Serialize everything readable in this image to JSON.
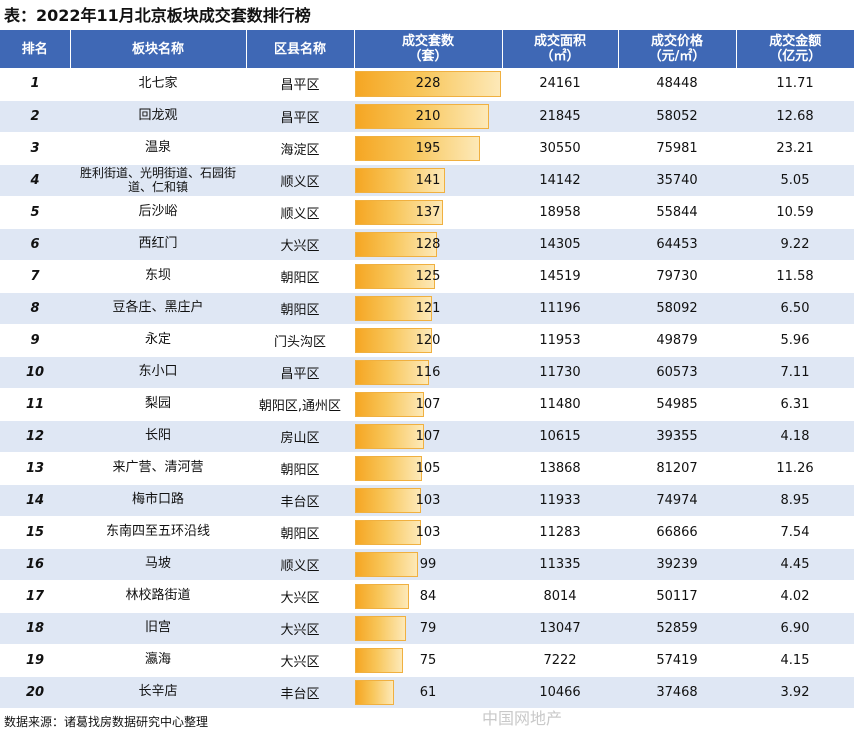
{
  "title": "表：2022年11月北京板块成交套数排行榜",
  "headers": {
    "rank": "排名",
    "block": "板块名称",
    "district": "区县名称",
    "count": "成交套数",
    "count_unit": "（套）",
    "area": "成交面积",
    "area_unit": "（㎡）",
    "price": "成交价格",
    "price_unit": "（元/㎡）",
    "amount": "成交金额",
    "amount_unit": "（亿元）"
  },
  "bar_max": 228,
  "colors": {
    "header_bg": "#3f68b5",
    "stripe_bg": "#dfe7f4",
    "bar": "#f5a623"
  },
  "rows": [
    {
      "rank": "1",
      "block": "北七家",
      "district": "昌平区",
      "count": 228,
      "area": "24161",
      "price": "48448",
      "amount": "11.71"
    },
    {
      "rank": "2",
      "block": "回龙观",
      "district": "昌平区",
      "count": 210,
      "area": "21845",
      "price": "58052",
      "amount": "12.68"
    },
    {
      "rank": "3",
      "block": "温泉",
      "district": "海淀区",
      "count": 195,
      "area": "30550",
      "price": "75981",
      "amount": "23.21"
    },
    {
      "rank": "4",
      "block": "胜利街道、光明街道、石园街道、仁和镇",
      "district": "顺义区",
      "count": 141,
      "area": "14142",
      "price": "35740",
      "amount": "5.05"
    },
    {
      "rank": "5",
      "block": "后沙峪",
      "district": "顺义区",
      "count": 137,
      "area": "18958",
      "price": "55844",
      "amount": "10.59"
    },
    {
      "rank": "6",
      "block": "西红门",
      "district": "大兴区",
      "count": 128,
      "area": "14305",
      "price": "64453",
      "amount": "9.22"
    },
    {
      "rank": "7",
      "block": "东坝",
      "district": "朝阳区",
      "count": 125,
      "area": "14519",
      "price": "79730",
      "amount": "11.58"
    },
    {
      "rank": "8",
      "block": "豆各庄、黑庄户",
      "district": "朝阳区",
      "count": 121,
      "area": "11196",
      "price": "58092",
      "amount": "6.50"
    },
    {
      "rank": "9",
      "block": "永定",
      "district": "门头沟区",
      "count": 120,
      "area": "11953",
      "price": "49879",
      "amount": "5.96"
    },
    {
      "rank": "10",
      "block": "东小口",
      "district": "昌平区",
      "count": 116,
      "area": "11730",
      "price": "60573",
      "amount": "7.11"
    },
    {
      "rank": "11",
      "block": "梨园",
      "district": "朝阳区,通州区",
      "count": 107,
      "area": "11480",
      "price": "54985",
      "amount": "6.31"
    },
    {
      "rank": "12",
      "block": "长阳",
      "district": "房山区",
      "count": 107,
      "area": "10615",
      "price": "39355",
      "amount": "4.18"
    },
    {
      "rank": "13",
      "block": "来广营、清河营",
      "district": "朝阳区",
      "count": 105,
      "area": "13868",
      "price": "81207",
      "amount": "11.26"
    },
    {
      "rank": "14",
      "block": "梅市口路",
      "district": "丰台区",
      "count": 103,
      "area": "11933",
      "price": "74974",
      "amount": "8.95"
    },
    {
      "rank": "15",
      "block": "东南四至五环沿线",
      "district": "朝阳区",
      "count": 103,
      "area": "11283",
      "price": "66866",
      "amount": "7.54"
    },
    {
      "rank": "16",
      "block": "马坡",
      "district": "顺义区",
      "count": 99,
      "area": "11335",
      "price": "39239",
      "amount": "4.45"
    },
    {
      "rank": "17",
      "block": "林校路街道",
      "district": "大兴区",
      "count": 84,
      "area": "8014",
      "price": "50117",
      "amount": "4.02"
    },
    {
      "rank": "18",
      "block": "旧宫",
      "district": "大兴区",
      "count": 79,
      "area": "13047",
      "price": "52859",
      "amount": "6.90"
    },
    {
      "rank": "19",
      "block": "瀛海",
      "district": "大兴区",
      "count": 75,
      "area": "7222",
      "price": "57419",
      "amount": "4.15"
    },
    {
      "rank": "20",
      "block": "长辛店",
      "district": "丰台区",
      "count": 61,
      "area": "10466",
      "price": "37468",
      "amount": "3.92"
    }
  ],
  "footer": "数据来源：诸葛找房数据研究中心整理",
  "watermark": "中国网地产"
}
